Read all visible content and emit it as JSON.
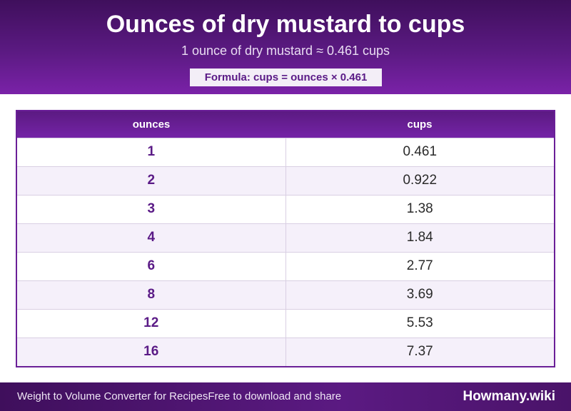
{
  "header": {
    "title": "Ounces of dry mustard to cups",
    "subtitle": "1 ounce of dry mustard ≈ 0.461 cups",
    "formula": "Formula: cups = ounces × 0.461"
  },
  "table": {
    "columns": [
      "ounces",
      "cups"
    ],
    "rows": [
      {
        "ounces": "1",
        "cups": "0.461"
      },
      {
        "ounces": "2",
        "cups": "0.922"
      },
      {
        "ounces": "3",
        "cups": "1.38"
      },
      {
        "ounces": "4",
        "cups": "1.84"
      },
      {
        "ounces": "6",
        "cups": "2.77"
      },
      {
        "ounces": "8",
        "cups": "3.69"
      },
      {
        "ounces": "12",
        "cups": "5.53"
      },
      {
        "ounces": "16",
        "cups": "7.37"
      }
    ]
  },
  "footer": {
    "left_text_1": "Weight to Volume Converter for Recipes",
    "left_text_2": "Free to download and share",
    "brand": "Howmany.wiki"
  },
  "colors": {
    "brand_purple": "#5b1a82",
    "accent_text": "#5a1a86"
  }
}
